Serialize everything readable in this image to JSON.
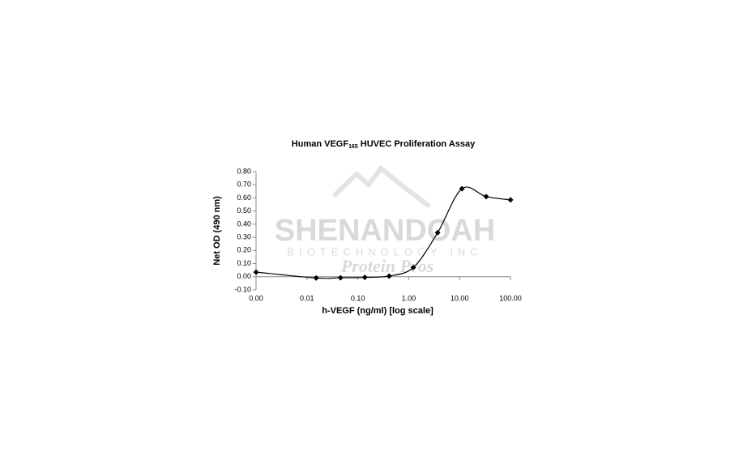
{
  "chart_data": {
    "type": "line",
    "title": {
      "main": "Human VEGF",
      "subscript": "165",
      "rest": "HUVEC Proliferation Assay"
    },
    "xlabel": "h-VEGF (ng/ml) [log scale]",
    "ylabel": "Net OD (490 nm)",
    "watermark": {
      "line1": "SHENANDOAH",
      "line2": "BIOTECHNOLOGY INC",
      "line3": "Protein Pros"
    },
    "x": [
      0.001,
      0.0152,
      0.0457,
      0.137,
      0.412,
      1.23,
      3.7,
      11.1,
      33.3,
      100
    ],
    "series": [
      {
        "name": "Net OD",
        "color": "#000000",
        "values": [
          0.035,
          -0.01,
          -0.008,
          -0.005,
          0.005,
          0.07,
          0.335,
          0.67,
          0.61,
          0.585
        ]
      }
    ],
    "xscale": "log",
    "xlim": [
      0.001,
      100
    ],
    "xticks": [
      {
        "value": 0.001,
        "label": "0.00"
      },
      {
        "value": 0.01,
        "label": "0.01"
      },
      {
        "value": 0.1,
        "label": "0.10"
      },
      {
        "value": 1,
        "label": "1.00"
      },
      {
        "value": 10,
        "label": "10.00"
      },
      {
        "value": 100,
        "label": "100.00"
      }
    ],
    "ylim": [
      -0.1,
      0.8
    ],
    "yticks": [
      {
        "value": -0.1,
        "label": "-0.10"
      },
      {
        "value": 0,
        "label": "0.00"
      },
      {
        "value": 0.1,
        "label": "0.10"
      },
      {
        "value": 0.2,
        "label": "0.20"
      },
      {
        "value": 0.3,
        "label": "0.30"
      },
      {
        "value": 0.4,
        "label": "0.40"
      },
      {
        "value": 0.5,
        "label": "0.50"
      },
      {
        "value": 0.6,
        "label": "0.60"
      },
      {
        "value": 0.7,
        "label": "0.70"
      },
      {
        "value": 0.8,
        "label": "0.80"
      }
    ],
    "smooth": true,
    "marker": "diamond"
  }
}
